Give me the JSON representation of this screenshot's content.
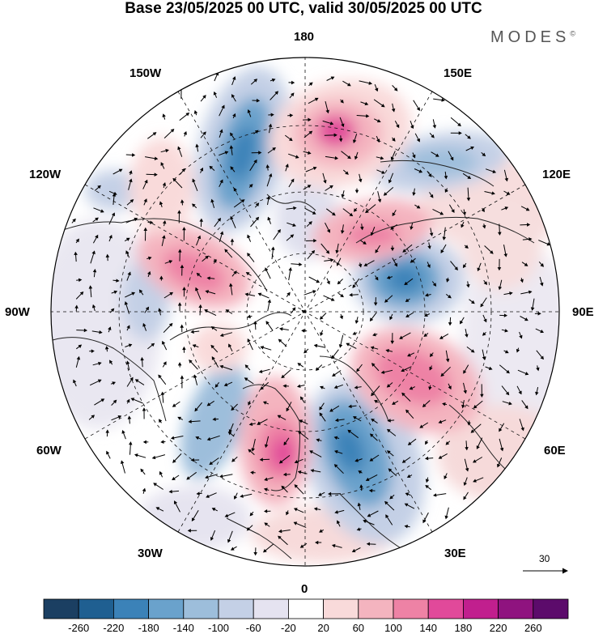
{
  "title": "Base 23/05/2025 00 UTC, valid 30/05/2025 00 UTC",
  "brand": "MODES",
  "brand_mark": "©",
  "map": {
    "projection": "north polar stereographic",
    "field": "anomaly shading with wind vectors",
    "longitude_labels": {
      "top": "180",
      "bottom": "0",
      "left": "90W",
      "right": "90E",
      "upper_left_1": "150W",
      "upper_left_2": "120W",
      "upper_right_1": "150E",
      "upper_right_2": "120E",
      "lower_left_1": "60W",
      "lower_left_2": "30W",
      "lower_right_1": "60E",
      "lower_right_2": "30E"
    },
    "reference_vector": "30"
  },
  "colorbar": {
    "ticks": [
      "-260",
      "-220",
      "-180",
      "-140",
      "-100",
      "-60",
      "-20",
      "20",
      "60",
      "100",
      "140",
      "180",
      "220",
      "260"
    ],
    "colors": [
      "#1b3f62",
      "#1f5f91",
      "#3b82b8",
      "#6aa2cc",
      "#9dbedb",
      "#c4d0e6",
      "#e5e3f0",
      "#ffffff",
      "#f9dada",
      "#f4b4bf",
      "#ee82a5",
      "#e1499a",
      "#c11f8e",
      "#8f137f",
      "#5c0b6b"
    ]
  }
}
